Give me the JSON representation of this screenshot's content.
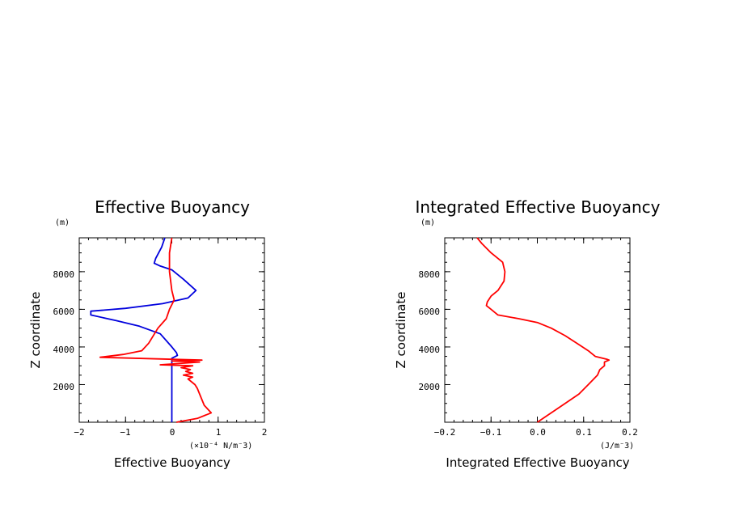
{
  "chart_data": [
    {
      "type": "line",
      "title": "Effective Buoyancy",
      "xlabel": "Effective Buoyancy",
      "ylabel": "Z coordinate",
      "x_unit": "(×10⁻⁴ N/m⁻3)",
      "y_unit": "(m)",
      "xlim": [
        -2,
        2
      ],
      "ylim": [
        0,
        9800
      ],
      "xticks": [
        "−2",
        "−1",
        "0",
        "1",
        "2"
      ],
      "yticks": [
        "2000",
        "4000",
        "6000",
        "8000"
      ],
      "xtick_values": [
        -2,
        -1,
        0,
        1,
        2
      ],
      "ytick_values": [
        2000,
        4000,
        6000,
        8000
      ],
      "series": [
        {
          "color": "#0000dd",
          "points": [
            [
              -0.15,
              9800
            ],
            [
              -0.22,
              9300
            ],
            [
              -0.35,
              8700
            ],
            [
              -0.38,
              8450
            ],
            [
              -0.25,
              8300
            ],
            [
              0.0,
              8100
            ],
            [
              0.25,
              7600
            ],
            [
              0.52,
              7000
            ],
            [
              0.35,
              6600
            ],
            [
              -0.2,
              6300
            ],
            [
              -1.0,
              6050
            ],
            [
              -1.75,
              5900
            ],
            [
              -1.75,
              5700
            ],
            [
              -1.2,
              5400
            ],
            [
              -0.7,
              5100
            ],
            [
              -0.25,
              4700
            ],
            [
              0.0,
              4000
            ],
            [
              0.1,
              3700
            ],
            [
              0.12,
              3550
            ],
            [
              0.0,
              3400
            ],
            [
              0.0,
              3000
            ],
            [
              0.0,
              0
            ]
          ]
        },
        {
          "color": "#ff0000",
          "points": [
            [
              0.0,
              9800
            ],
            [
              -0.05,
              9000
            ],
            [
              -0.05,
              8000
            ],
            [
              0.0,
              7000
            ],
            [
              0.05,
              6500
            ],
            [
              -0.05,
              6000
            ],
            [
              -0.12,
              5500
            ],
            [
              -0.3,
              5000
            ],
            [
              -0.5,
              4200
            ],
            [
              -0.65,
              3800
            ],
            [
              -1.05,
              3600
            ],
            [
              -1.55,
              3450
            ],
            [
              0.65,
              3300
            ],
            [
              0.0,
              3250
            ],
            [
              0.6,
              3200
            ],
            [
              -0.25,
              3050
            ],
            [
              0.45,
              3000
            ],
            [
              0.2,
              2900
            ],
            [
              0.4,
              2800
            ],
            [
              0.3,
              2700
            ],
            [
              0.45,
              2600
            ],
            [
              0.25,
              2500
            ],
            [
              0.45,
              2400
            ],
            [
              0.35,
              2300
            ],
            [
              0.5,
              2000
            ],
            [
              0.55,
              1800
            ],
            [
              0.65,
              1200
            ],
            [
              0.7,
              900
            ],
            [
              0.85,
              500
            ],
            [
              0.55,
              200
            ],
            [
              0.1,
              0
            ]
          ]
        }
      ]
    },
    {
      "type": "line",
      "title": "Integrated Effective Buoyancy",
      "xlabel": "Integrated Effective Buoyancy",
      "ylabel": "Z coordinate",
      "x_unit": "(J/m⁻3)",
      "y_unit": "(m)",
      "xlim": [
        -0.2,
        0.2
      ],
      "ylim": [
        0,
        9800
      ],
      "xticks": [
        "−0.2",
        "−0.1",
        "0.0",
        "0.1",
        "0.2"
      ],
      "yticks": [
        "2000",
        "4000",
        "6000",
        "8000"
      ],
      "xtick_values": [
        -0.2,
        -0.1,
        0.0,
        0.1,
        0.2
      ],
      "ytick_values": [
        2000,
        4000,
        6000,
        8000
      ],
      "series": [
        {
          "color": "#ff0000",
          "points": [
            [
              -0.13,
              9800
            ],
            [
              -0.12,
              9500
            ],
            [
              -0.1,
              9000
            ],
            [
              -0.075,
              8500
            ],
            [
              -0.07,
              8000
            ],
            [
              -0.072,
              7500
            ],
            [
              -0.085,
              7000
            ],
            [
              -0.1,
              6700
            ],
            [
              -0.108,
              6400
            ],
            [
              -0.11,
              6200
            ],
            [
              -0.1,
              6000
            ],
            [
              -0.085,
              5700
            ],
            [
              -0.04,
              5500
            ],
            [
              0.0,
              5300
            ],
            [
              0.03,
              5000
            ],
            [
              0.06,
              4600
            ],
            [
              0.085,
              4200
            ],
            [
              0.11,
              3800
            ],
            [
              0.125,
              3500
            ],
            [
              0.15,
              3350
            ],
            [
              0.155,
              3300
            ],
            [
              0.145,
              3200
            ],
            [
              0.145,
              3000
            ],
            [
              0.135,
              2800
            ],
            [
              0.13,
              2500
            ],
            [
              0.11,
              2000
            ],
            [
              0.09,
              1500
            ],
            [
              0.06,
              1000
            ],
            [
              0.03,
              500
            ],
            [
              0.0,
              0
            ]
          ]
        }
      ]
    }
  ]
}
